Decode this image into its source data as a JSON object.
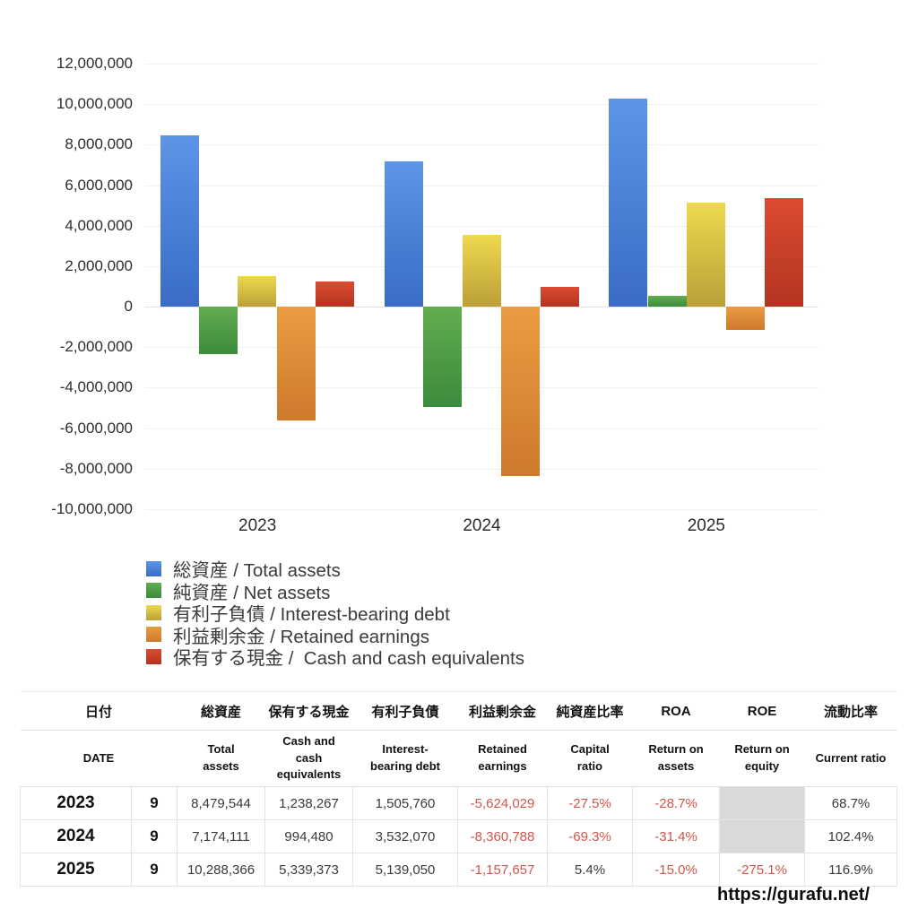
{
  "chart_data": {
    "type": "bar",
    "title": "",
    "categories": [
      "2023",
      "2024",
      "2025"
    ],
    "series": [
      {
        "label": "総資産 / Total assets",
        "color_top": "#5d95e6",
        "color_bottom": "#3a6cc6",
        "values": [
          8479544,
          7174111,
          10288366
        ]
      },
      {
        "label": "純資産 / Net assets",
        "color_top": "#62ad50",
        "color_bottom": "#3c8a3c",
        "values": [
          -2331875,
          -4971659,
          555572
        ]
      },
      {
        "label": "有利子負債 / Interest-bearing debt",
        "color_top": "#eed94e",
        "color_bottom": "#bba038",
        "values": [
          1505760,
          3532070,
          5139050
        ]
      },
      {
        "label": "利益剰余金 / Retained earnings",
        "color_top": "#eb9c42",
        "color_bottom": "#cd7a2c",
        "values": [
          -5624029,
          -8360788,
          -1157657
        ]
      },
      {
        "label": "保有する現金 /  Cash and cash equivalents",
        "color_top": "#dd4b31",
        "color_bottom": "#b23420",
        "values": [
          1238267,
          994480,
          5339373
        ]
      }
    ],
    "xlabel": "",
    "ylabel": "",
    "ylim": [
      -10000000,
      12000000
    ],
    "ytick_step": 2000000,
    "yticks": [
      "12,000,000",
      "10,000,000",
      "8,000,000",
      "6,000,000",
      "4,000,000",
      "2,000,000",
      "0",
      "-2,000,000",
      "-4,000,000",
      "-6,000,000",
      "-8,000,000",
      "-10,000,000"
    ],
    "grid": true,
    "legend_position": "bottom-left"
  },
  "table": {
    "columns": [
      {
        "ja": "日付",
        "en": "DATE"
      },
      {
        "ja": "総資産",
        "en": "Total assets"
      },
      {
        "ja": "保有する現金",
        "en": "Cash and cash equivalents"
      },
      {
        "ja": "有利子負債",
        "en": "Interest-bearing debt"
      },
      {
        "ja": "利益剰余金",
        "en": "Retained earnings"
      },
      {
        "ja": "純資産比率",
        "en": "Capital ratio"
      },
      {
        "ja": "ROA",
        "en": "Return on assets"
      },
      {
        "ja": "ROE",
        "en": "Return on equity"
      },
      {
        "ja": "流動比率",
        "en": "Current ratio"
      }
    ],
    "rows": [
      {
        "year": "2023",
        "month": "9",
        "cells": [
          {
            "text": "8,479,544",
            "style": ""
          },
          {
            "text": "1,238,267",
            "style": ""
          },
          {
            "text": "1,505,760",
            "style": ""
          },
          {
            "text": "-5,624,029",
            "style": "neg"
          },
          {
            "text": "-27.5%",
            "style": "neg"
          },
          {
            "text": "-28.7%",
            "style": "neg"
          },
          {
            "text": "",
            "style": "gray"
          },
          {
            "text": "68.7%",
            "style": ""
          }
        ]
      },
      {
        "year": "2024",
        "month": "9",
        "cells": [
          {
            "text": "7,174,111",
            "style": ""
          },
          {
            "text": "994,480",
            "style": ""
          },
          {
            "text": "3,532,070",
            "style": ""
          },
          {
            "text": "-8,360,788",
            "style": "neg"
          },
          {
            "text": "-69.3%",
            "style": "neg"
          },
          {
            "text": "-31.4%",
            "style": "neg"
          },
          {
            "text": "",
            "style": "gray gray-merge"
          },
          {
            "text": "102.4%",
            "style": ""
          }
        ]
      },
      {
        "year": "2025",
        "month": "9",
        "cells": [
          {
            "text": "10,288,366",
            "style": ""
          },
          {
            "text": "5,339,373",
            "style": ""
          },
          {
            "text": "5,139,050",
            "style": ""
          },
          {
            "text": "-1,157,657",
            "style": "neg"
          },
          {
            "text": "5.4%",
            "style": ""
          },
          {
            "text": "-15.0%",
            "style": "neg"
          },
          {
            "text": "-275.1%",
            "style": "neg"
          },
          {
            "text": "116.9%",
            "style": ""
          }
        ]
      }
    ]
  },
  "footer": {
    "url": "https://gurafu.net/"
  },
  "colors": {
    "negative_text": "#d0564a",
    "gray_cell": "#d9d9d9",
    "grid": "#f0f0f0",
    "table_border": "#e3e3e3"
  }
}
